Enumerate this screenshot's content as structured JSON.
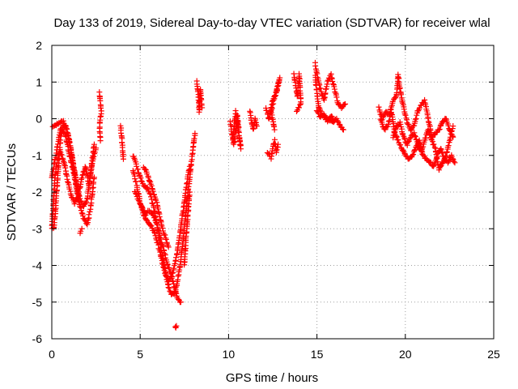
{
  "chart_data": {
    "type": "scatter",
    "title": "Day 133 of 2019, Sidereal Day-to-day VTEC variation (SDTVAR) for receiver wlal",
    "xlabel": "GPS time / hours",
    "ylabel": "SDTVAR / TECUs",
    "xlim": [
      0,
      25
    ],
    "ylim": [
      -6,
      2
    ],
    "xticks": [
      0,
      5,
      10,
      15,
      20,
      25
    ],
    "yticks": [
      -6,
      -5,
      -4,
      -3,
      -2,
      -1,
      0,
      1,
      2
    ],
    "grid": true,
    "marker": "+",
    "color": "#ff0000",
    "series": [
      {
        "name": "SDTVAR",
        "anchors": [
          [
            [
              0.0,
              -0.2
            ],
            [
              0.2,
              -0.2
            ],
            [
              0.4,
              -0.1
            ],
            [
              0.6,
              -0.05
            ],
            [
              0.8,
              -0.2
            ],
            [
              1.0,
              -0.6
            ],
            [
              1.2,
              -1.2
            ],
            [
              1.4,
              -1.8
            ],
            [
              1.6,
              -2.2
            ],
            [
              1.8,
              -2.4
            ],
            [
              2.0,
              -2.2
            ],
            [
              2.2,
              -1.5
            ],
            [
              2.4,
              -0.7
            ]
          ],
          [
            [
              0.0,
              -3.0
            ],
            [
              0.1,
              -2.2
            ],
            [
              0.2,
              -1.5
            ],
            [
              0.35,
              -1.0
            ],
            [
              0.5,
              -0.9
            ],
            [
              0.7,
              -1.2
            ],
            [
              0.9,
              -1.7
            ],
            [
              1.1,
              -2.1
            ],
            [
              1.3,
              -2.3
            ],
            [
              1.5,
              -2.1
            ],
            [
              1.7,
              -1.6
            ],
            [
              1.9,
              -1.3
            ],
            [
              2.1,
              -1.8
            ],
            [
              2.3,
              -1.2
            ],
            [
              2.5,
              -0.8
            ]
          ],
          [
            [
              0.1,
              -3.0
            ],
            [
              0.2,
              -2.6
            ],
            [
              0.3,
              -1.8
            ],
            [
              0.4,
              -1.2
            ],
            [
              0.5,
              -0.5
            ],
            [
              0.6,
              -0.3
            ],
            [
              0.8,
              -0.5
            ],
            [
              1.0,
              -1.0
            ],
            [
              1.2,
              -1.4
            ],
            [
              1.4,
              -1.9
            ],
            [
              1.6,
              -2.4
            ],
            [
              1.8,
              -2.7
            ],
            [
              2.0,
              -2.9
            ],
            [
              2.2,
              -2.4
            ],
            [
              2.4,
              -1.6
            ]
          ],
          [
            [
              0.0,
              -1.6
            ],
            [
              0.15,
              -1.2
            ],
            [
              0.3,
              -0.8
            ],
            [
              0.5,
              -0.3
            ],
            [
              0.7,
              -0.15
            ],
            [
              0.9,
              -0.4
            ],
            [
              1.1,
              -0.9
            ],
            [
              1.3,
              -1.5
            ],
            [
              1.5,
              -2.0
            ]
          ],
          [
            [
              1.6,
              -3.1
            ],
            [
              1.7,
              -3.0
            ]
          ],
          [
            [
              2.7,
              0.7
            ],
            [
              2.75,
              0.4
            ],
            [
              2.8,
              0.2
            ],
            [
              2.7,
              -0.2
            ],
            [
              2.75,
              -0.6
            ]
          ],
          [
            [
              3.9,
              -0.2
            ],
            [
              3.95,
              -0.5
            ],
            [
              4.0,
              -0.8
            ],
            [
              4.05,
              -1.1
            ]
          ],
          [
            [
              4.6,
              -1.0
            ],
            [
              4.8,
              -1.3
            ],
            [
              5.0,
              -1.6
            ],
            [
              5.2,
              -1.8
            ],
            [
              5.4,
              -1.9
            ],
            [
              5.6,
              -2.1
            ],
            [
              5.8,
              -2.5
            ],
            [
              6.0,
              -3.0
            ],
            [
              6.2,
              -3.6
            ],
            [
              6.4,
              -4.1
            ],
            [
              6.6,
              -4.6
            ],
            [
              6.8,
              -4.8
            ],
            [
              7.0,
              -4.7
            ],
            [
              7.2,
              -4.2
            ],
            [
              7.4,
              -3.4
            ],
            [
              7.6,
              -2.5
            ],
            [
              7.8,
              -1.6
            ],
            [
              8.0,
              -0.8
            ],
            [
              8.1,
              -0.4
            ]
          ],
          [
            [
              4.6,
              -1.4
            ],
            [
              4.8,
              -1.8
            ],
            [
              5.0,
              -2.3
            ],
            [
              5.2,
              -2.6
            ],
            [
              5.4,
              -2.8
            ],
            [
              5.6,
              -2.9
            ],
            [
              5.8,
              -3.1
            ],
            [
              6.0,
              -3.4
            ],
            [
              6.2,
              -3.8
            ],
            [
              6.4,
              -4.2
            ],
            [
              6.6,
              -4.4
            ],
            [
              6.8,
              -4.3
            ],
            [
              7.0,
              -3.9
            ],
            [
              7.2,
              -3.3
            ],
            [
              7.4,
              -2.6
            ],
            [
              7.6,
              -1.9
            ],
            [
              7.8,
              -1.3
            ]
          ],
          [
            [
              4.7,
              -2.0
            ],
            [
              4.9,
              -2.2
            ],
            [
              5.1,
              -2.4
            ],
            [
              5.3,
              -2.6
            ],
            [
              5.5,
              -2.5
            ],
            [
              5.7,
              -2.6
            ],
            [
              5.9,
              -2.8
            ],
            [
              6.1,
              -3.2
            ],
            [
              6.3,
              -3.5
            ],
            [
              6.5,
              -3.9
            ],
            [
              6.7,
              -4.2
            ],
            [
              6.9,
              -4.5
            ],
            [
              7.1,
              -4.9
            ],
            [
              7.3,
              -5.0
            ]
          ],
          [
            [
              5.2,
              -1.3
            ],
            [
              5.4,
              -1.5
            ],
            [
              5.6,
              -1.8
            ],
            [
              5.8,
              -2.1
            ],
            [
              6.0,
              -2.4
            ],
            [
              6.2,
              -2.9
            ],
            [
              6.4,
              -3.2
            ],
            [
              6.6,
              -3.5
            ]
          ],
          [
            [
              7.0,
              -5.7
            ],
            [
              7.05,
              -5.65
            ]
          ],
          [
            [
              7.5,
              -4.0
            ],
            [
              7.6,
              -3.2
            ],
            [
              7.7,
              -2.6
            ],
            [
              7.8,
              -2.0
            ]
          ],
          [
            [
              8.2,
              1.0
            ],
            [
              8.3,
              0.6
            ],
            [
              8.35,
              0.2
            ],
            [
              8.4,
              0.8
            ],
            [
              8.45,
              0.5
            ],
            [
              8.5,
              0.3
            ]
          ],
          [
            [
              10.1,
              -0.1
            ],
            [
              10.2,
              -0.4
            ],
            [
              10.3,
              -0.7
            ],
            [
              10.4,
              -0.3
            ],
            [
              10.5,
              0.1
            ],
            [
              10.6,
              -0.5
            ],
            [
              10.7,
              -0.8
            ],
            [
              10.4,
              0.2
            ],
            [
              10.25,
              -0.55
            ]
          ],
          [
            [
              11.2,
              0.2
            ],
            [
              11.3,
              -0.1
            ],
            [
              11.4,
              -0.3
            ],
            [
              11.5,
              0.0
            ],
            [
              11.6,
              -0.2
            ]
          ],
          [
            [
              12.2,
              -0.9
            ],
            [
              12.3,
              -1.0
            ],
            [
              12.4,
              -1.1
            ],
            [
              12.5,
              -0.8
            ],
            [
              12.6,
              -0.6
            ],
            [
              12.7,
              -0.9
            ],
            [
              12.8,
              -0.7
            ]
          ],
          [
            [
              12.1,
              0.3
            ],
            [
              12.3,
              0.0
            ],
            [
              12.5,
              0.5
            ],
            [
              12.7,
              0.7
            ],
            [
              12.9,
              1.1
            ],
            [
              12.4,
              0.2
            ],
            [
              12.6,
              -0.3
            ]
          ],
          [
            [
              13.7,
              1.2
            ],
            [
              13.8,
              0.9
            ],
            [
              13.9,
              0.6
            ],
            [
              14.0,
              1.2
            ],
            [
              14.1,
              0.4
            ],
            [
              13.85,
              0.2
            ]
          ],
          [
            [
              14.9,
              1.5
            ],
            [
              15.0,
              1.2
            ],
            [
              15.2,
              0.8
            ],
            [
              15.4,
              0.5
            ],
            [
              15.6,
              1.0
            ],
            [
              15.8,
              1.2
            ],
            [
              16.0,
              0.8
            ],
            [
              16.2,
              0.4
            ],
            [
              16.4,
              0.3
            ],
            [
              16.6,
              0.4
            ]
          ],
          [
            [
              14.9,
              1.2
            ],
            [
              15.0,
              0.7
            ],
            [
              15.1,
              0.3
            ],
            [
              15.3,
              0.1
            ],
            [
              15.5,
              0.0
            ],
            [
              15.7,
              0.0
            ],
            [
              15.9,
              -0.1
            ],
            [
              16.1,
              0.0
            ],
            [
              16.3,
              -0.2
            ],
            [
              16.5,
              -0.3
            ]
          ],
          [
            [
              15.0,
              0.2
            ],
            [
              15.2,
              0.05
            ],
            [
              15.4,
              0.1
            ],
            [
              15.6,
              -0.05
            ],
            [
              15.8,
              0.05
            ],
            [
              16.0,
              -0.05
            ]
          ],
          [
            [
              18.5,
              0.3
            ],
            [
              18.7,
              0.0
            ],
            [
              18.9,
              0.2
            ],
            [
              19.1,
              0.1
            ],
            [
              19.3,
              0.5
            ],
            [
              19.5,
              0.6
            ],
            [
              19.6,
              1.2
            ],
            [
              19.7,
              0.8
            ],
            [
              19.9,
              0.3
            ],
            [
              20.1,
              -0.1
            ],
            [
              20.3,
              -0.3
            ],
            [
              20.5,
              -0.2
            ],
            [
              20.7,
              0.2
            ],
            [
              20.9,
              0.4
            ],
            [
              21.1,
              0.5
            ],
            [
              21.3,
              0.0
            ],
            [
              21.5,
              -0.5
            ],
            [
              21.7,
              -0.4
            ],
            [
              21.9,
              -0.3
            ],
            [
              22.1,
              -0.1
            ],
            [
              22.3,
              0.0
            ],
            [
              22.5,
              -0.3
            ],
            [
              22.7,
              -0.5
            ]
          ],
          [
            [
              18.6,
              0.0
            ],
            [
              18.8,
              -0.3
            ],
            [
              19.0,
              -0.2
            ],
            [
              19.2,
              0.2
            ],
            [
              19.4,
              -0.4
            ],
            [
              19.6,
              -0.6
            ],
            [
              19.8,
              -0.8
            ],
            [
              20.0,
              -1.0
            ],
            [
              20.2,
              -1.1
            ],
            [
              20.4,
              -1.0
            ],
            [
              20.6,
              -0.8
            ],
            [
              20.8,
              -0.6
            ],
            [
              21.0,
              -1.0
            ],
            [
              21.2,
              -1.1
            ],
            [
              21.4,
              -1.2
            ],
            [
              21.6,
              -1.3
            ],
            [
              21.8,
              -1.0
            ],
            [
              22.0,
              -0.8
            ],
            [
              22.2,
              -1.1
            ],
            [
              22.4,
              -1.2
            ],
            [
              22.6,
              -1.0
            ],
            [
              22.8,
              -1.2
            ]
          ],
          [
            [
              19.3,
              -0.5
            ],
            [
              19.5,
              -0.2
            ],
            [
              19.7,
              -0.1
            ],
            [
              19.9,
              -0.5
            ],
            [
              20.1,
              -0.7
            ],
            [
              20.3,
              -0.5
            ],
            [
              20.5,
              -0.4
            ],
            [
              20.7,
              -0.7
            ],
            [
              20.9,
              -0.9
            ],
            [
              21.1,
              -0.6
            ],
            [
              21.3,
              -0.3
            ],
            [
              21.5,
              -0.6
            ],
            [
              21.7,
              -0.8
            ],
            [
              21.9,
              -1.4
            ],
            [
              22.1,
              -1.2
            ],
            [
              22.3,
              -1.0
            ],
            [
              22.5,
              -0.6
            ],
            [
              22.7,
              -0.2
            ]
          ]
        ]
      }
    ]
  }
}
